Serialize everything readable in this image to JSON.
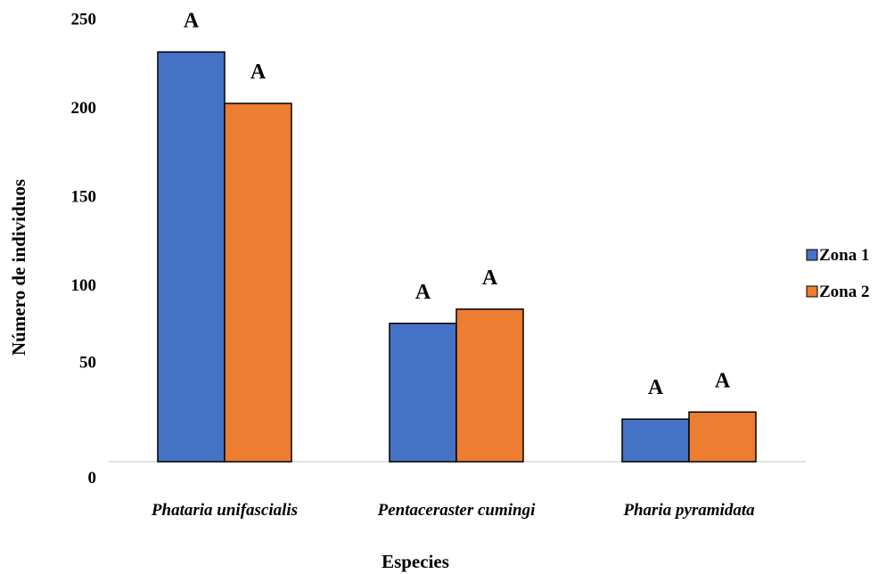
{
  "chart_data": {
    "type": "bar",
    "title": "",
    "xlabel": "Especies",
    "ylabel": "Número de individuos",
    "categories": [
      "Phataria unifascialis",
      "Pentaceraster cumingi",
      "Pharia pyramidata"
    ],
    "series": [
      {
        "name": "Zona 1",
        "color": "#4472C4",
        "values": [
          231,
          78,
          24
        ],
        "labels": [
          "A",
          "A",
          "A"
        ]
      },
      {
        "name": "Zona 2",
        "color": "#ED7D31",
        "values": [
          202,
          86,
          28
        ],
        "labels": [
          "A",
          "A",
          "A"
        ]
      }
    ],
    "yticks": [
      "0",
      "50",
      "100",
      "150",
      "200",
      "250"
    ],
    "ylim": [
      0,
      250
    ],
    "grid": false,
    "legend_position": "right"
  }
}
